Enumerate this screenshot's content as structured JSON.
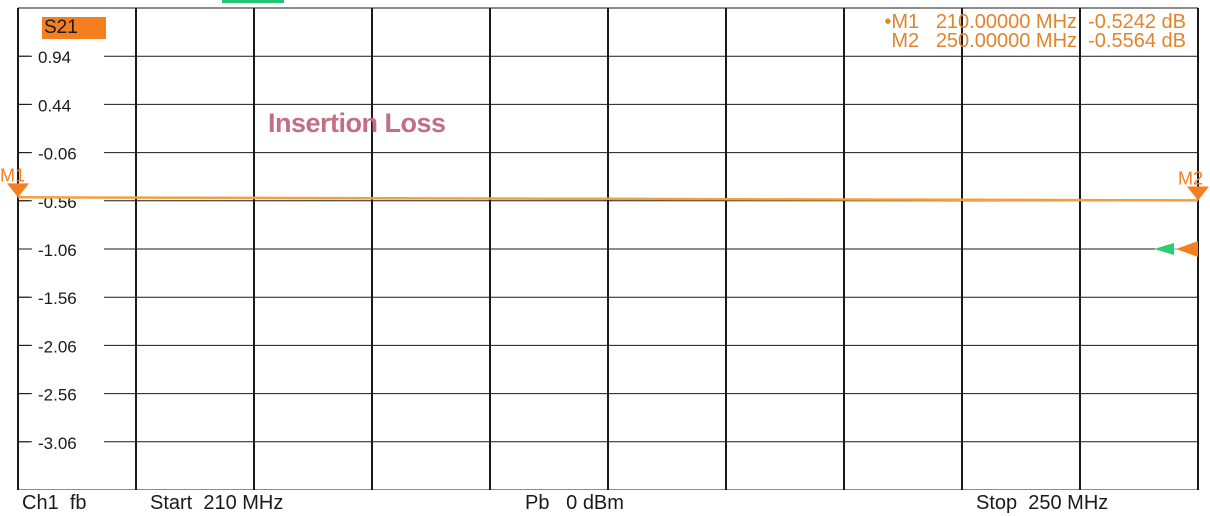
{
  "colors": {
    "background": "#ffffff",
    "grid": "#1a1a1a",
    "trace": "#f0a040",
    "marker": "#f47f20",
    "reference_arrow": "#2ecc71",
    "readout": "#e2842c",
    "title": "#c26f86"
  },
  "trace_badge": "S21",
  "annotation": "Insertion Loss",
  "markers": [
    {
      "id": "M1",
      "label": "M1",
      "prefix": "•",
      "frequency": "210.00000 MHz",
      "value": "-0.5242 dB",
      "freq_mhz": 210,
      "db": -0.5242
    },
    {
      "id": "M2",
      "label": "M2",
      "prefix": "",
      "frequency": "250.00000 MHz",
      "value": "-0.5564 dB",
      "freq_mhz": 250,
      "db": -0.5564
    }
  ],
  "footer": {
    "channel": "Ch1",
    "sweep_type": "fb",
    "start": "Start  210 MHz",
    "power": "Pb   0 dBm",
    "stop": "Stop  250 MHz"
  },
  "chart_data": {
    "type": "line",
    "title": "Insertion Loss",
    "xlabel": "",
    "ylabel": "",
    "xlim": [
      210,
      250
    ],
    "ylim": [
      -3.56,
      1.44
    ],
    "x_divisions": 10,
    "y_divisions": 10,
    "y_ticks": [
      0.94,
      0.44,
      -0.06,
      -0.56,
      -1.06,
      -1.56,
      -2.06,
      -2.56,
      -3.06
    ],
    "y_tick_labels": [
      "0.94",
      "0.44",
      "-0.06",
      "-0.56",
      "-1.06",
      "-1.56",
      "-2.06",
      "-2.56",
      "-3.06"
    ],
    "grid": true,
    "reference_level": -1.06,
    "series": [
      {
        "name": "S21",
        "x": [
          210,
          212,
          214,
          216,
          218,
          220,
          222,
          224,
          226,
          228,
          230,
          232,
          234,
          236,
          238,
          240,
          242,
          244,
          246,
          248,
          250
        ],
        "y": [
          -0.524,
          -0.526,
          -0.527,
          -0.529,
          -0.53,
          -0.532,
          -0.533,
          -0.535,
          -0.536,
          -0.538,
          -0.539,
          -0.541,
          -0.543,
          -0.545,
          -0.546,
          -0.548,
          -0.55,
          -0.551,
          -0.553,
          -0.555,
          -0.556
        ]
      }
    ]
  }
}
